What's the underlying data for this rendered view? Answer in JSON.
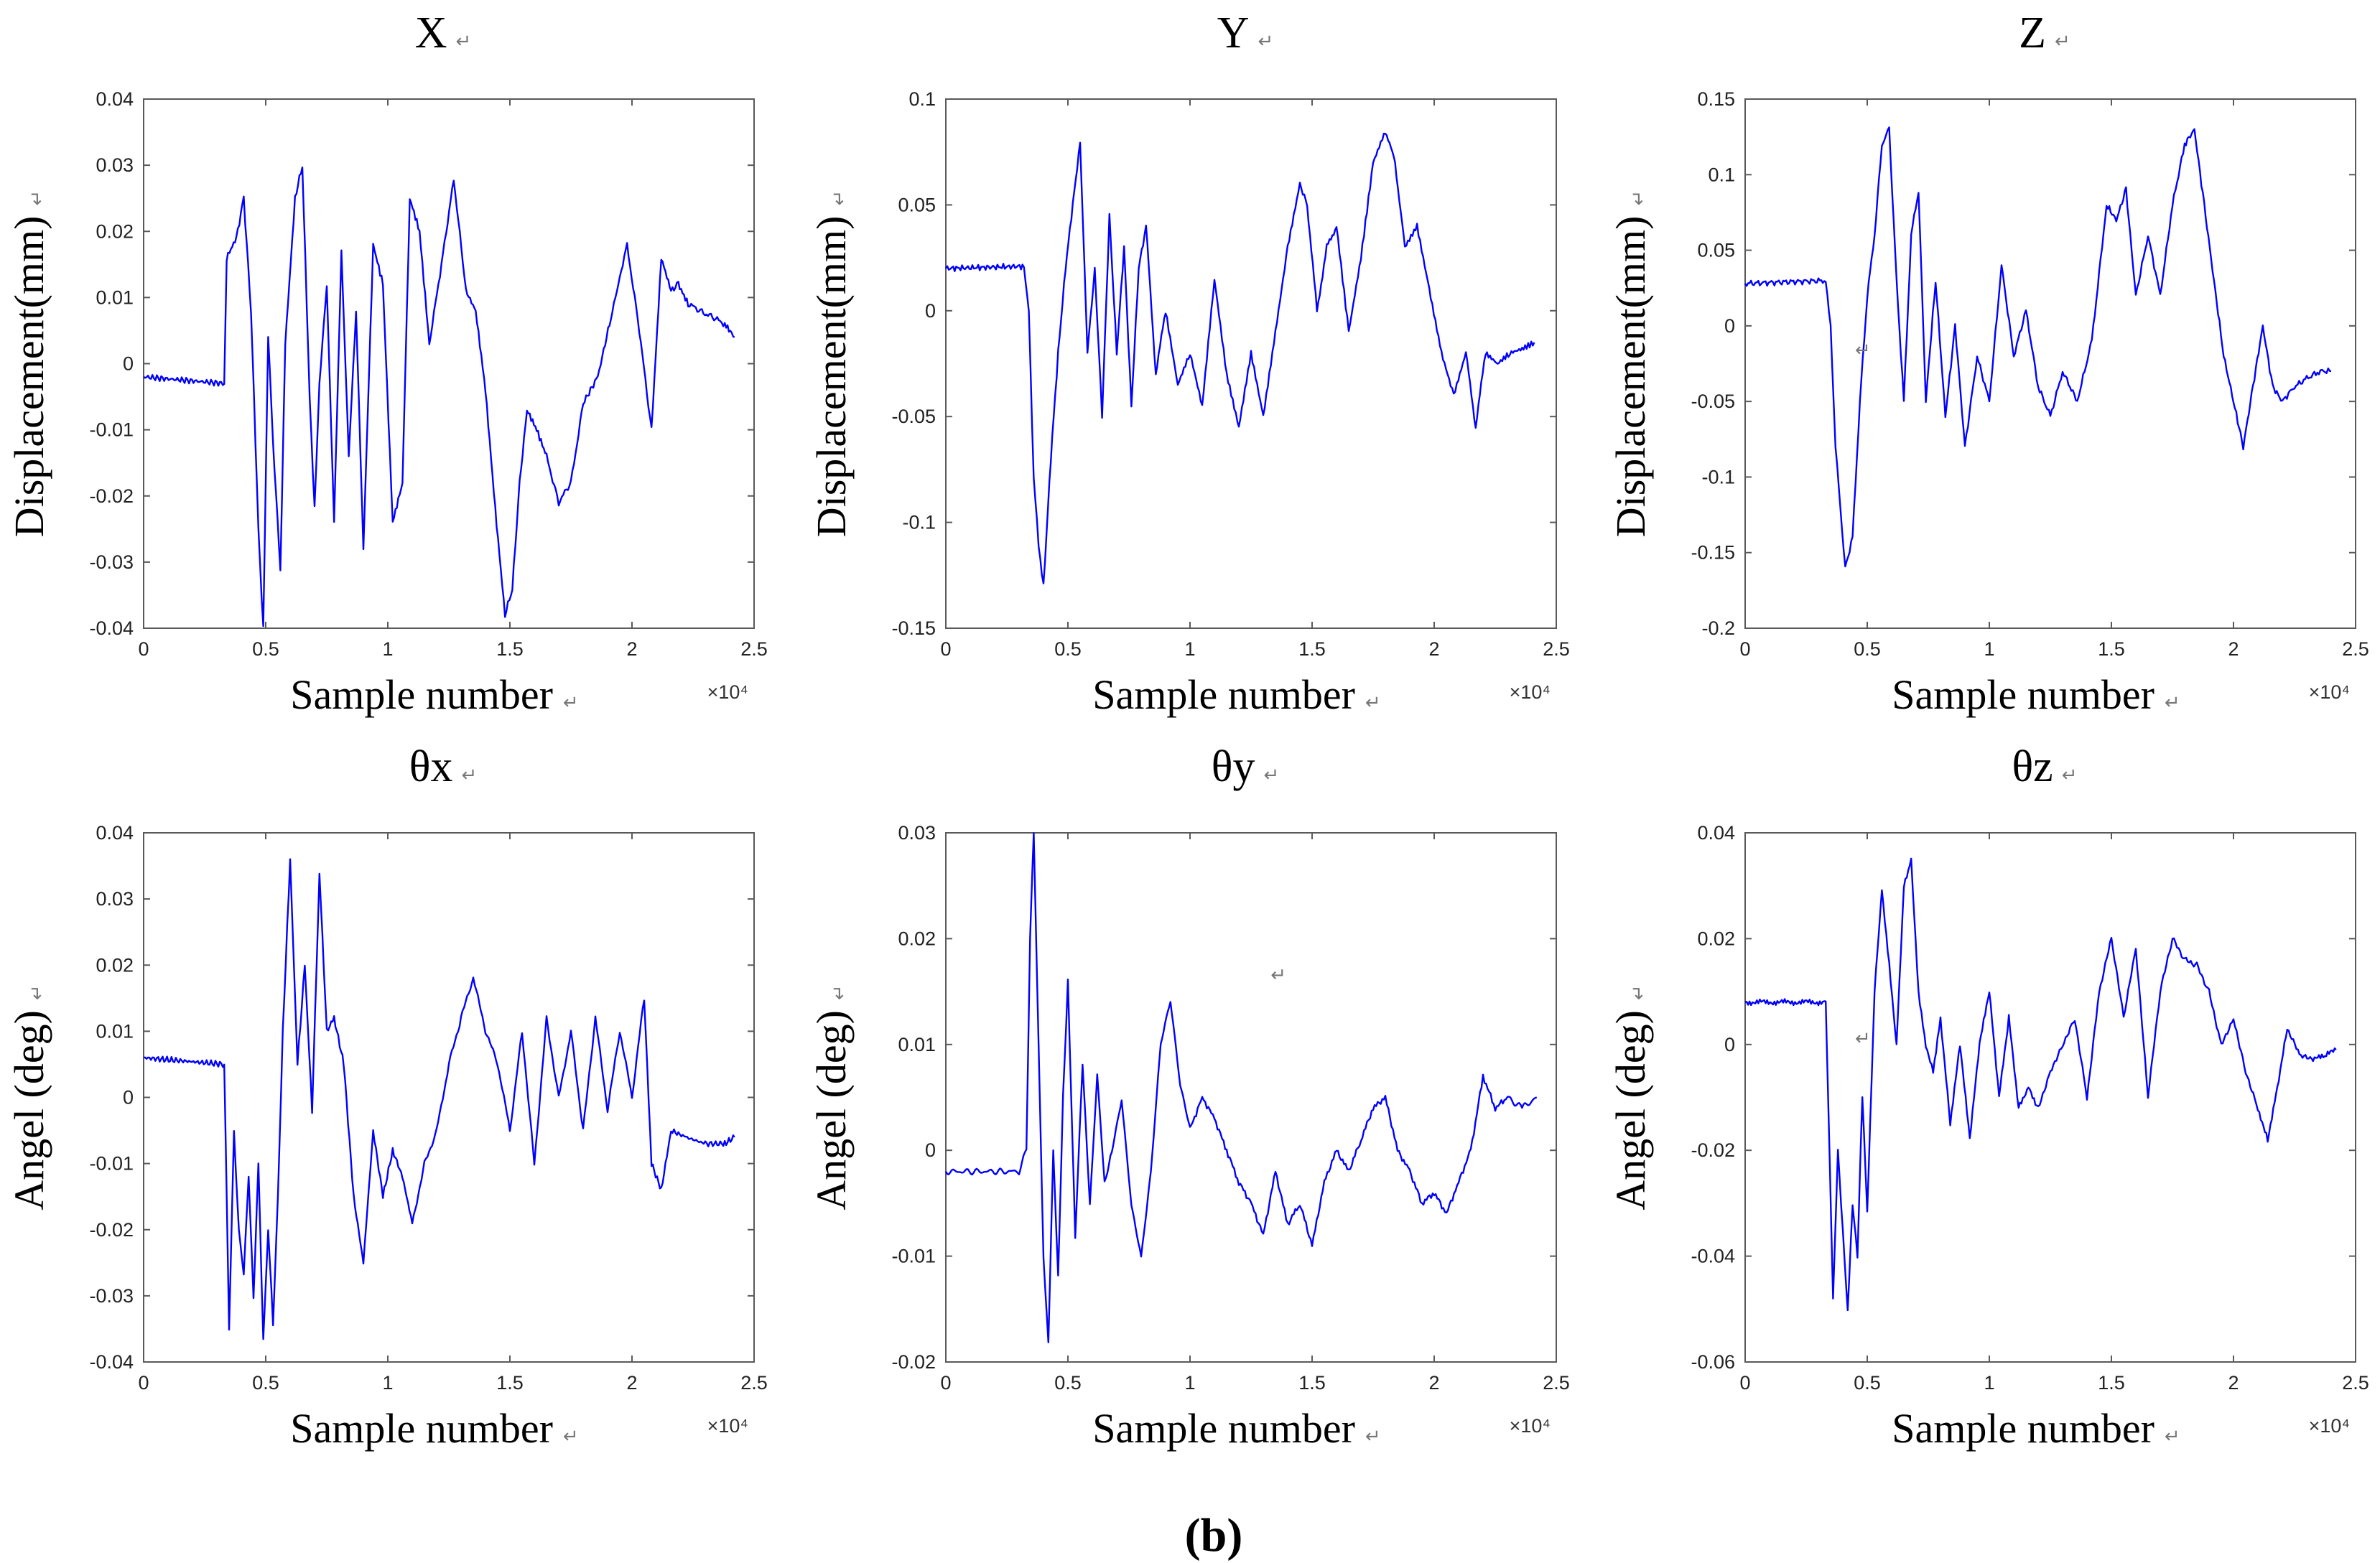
{
  "figure_caption": "(b)",
  "return_mark": "↵",
  "chart_data": [
    {
      "type": "line",
      "title": "X",
      "xlabel": "Sample number",
      "ylabel": "Displacement(mm)",
      "x_multiplier": "×10⁴",
      "xlim": [
        0,
        2.5
      ],
      "xticks": [
        "0",
        "0.5",
        "1",
        "1.5",
        "2",
        "2.5"
      ],
      "ylim": [
        -0.04,
        0.04
      ],
      "yticks": [
        "-0.04",
        "-0.03",
        "-0.02",
        "-0.01",
        "0",
        "0.01",
        "0.02",
        "0.03",
        "0.04"
      ],
      "series": [
        {
          "name": "X",
          "color": "#0000ff",
          "x": [
            0,
            0.33,
            0.34,
            0.38,
            0.41,
            0.44,
            0.47,
            0.49,
            0.51,
            0.53,
            0.56,
            0.58,
            0.62,
            0.65,
            0.68,
            0.7,
            0.72,
            0.75,
            0.78,
            0.81,
            0.84,
            0.87,
            0.9,
            0.94,
            0.98,
            1.02,
            1.06,
            1.09,
            1.13,
            1.17,
            1.22,
            1.27,
            1.32,
            1.36,
            1.4,
            1.44,
            1.48,
            1.51,
            1.54,
            1.57,
            1.61,
            1.65,
            1.7,
            1.75,
            1.8,
            1.86,
            1.92,
            1.98,
            2.03,
            2.08,
            2.12,
            2.16,
            2.19,
            2.23,
            2.28,
            2.33,
            2.38,
            2.42
          ],
          "y": [
            -0.002,
            -0.003,
            0.016,
            0.019,
            0.025,
            0.008,
            -0.025,
            -0.04,
            0.004,
            -0.012,
            -0.031,
            0.003,
            0.025,
            0.03,
            -0.005,
            -0.022,
            -0.003,
            0.012,
            -0.024,
            0.017,
            -0.014,
            0.008,
            -0.028,
            0.018,
            0.012,
            -0.024,
            -0.018,
            0.025,
            0.02,
            0.003,
            0.015,
            0.028,
            0.011,
            0.008,
            -0.004,
            -0.022,
            -0.038,
            -0.034,
            -0.018,
            -0.007,
            -0.01,
            -0.014,
            -0.021,
            -0.018,
            -0.006,
            -0.002,
            0.008,
            0.018,
            0.005,
            -0.01,
            0.016,
            0.011,
            0.012,
            0.009,
            0.008,
            0.007,
            0.006,
            0.004
          ]
        }
      ]
    },
    {
      "type": "line",
      "title": "Y",
      "xlabel": "Sample number",
      "ylabel": "Displacement(mm)",
      "x_multiplier": "×10⁴",
      "xlim": [
        0,
        2.5
      ],
      "xticks": [
        "0",
        "0.5",
        "1",
        "1.5",
        "2",
        "2.5"
      ],
      "ylim": [
        -0.15,
        0.1
      ],
      "yticks": [
        "-0.15",
        "-0.1",
        "-0.05",
        "0",
        "0.05",
        "0.1"
      ],
      "series": [
        {
          "name": "Y",
          "color": "#0000ff",
          "x": [
            0,
            0.32,
            0.34,
            0.36,
            0.38,
            0.4,
            0.43,
            0.46,
            0.49,
            0.52,
            0.55,
            0.58,
            0.61,
            0.64,
            0.67,
            0.7,
            0.73,
            0.76,
            0.79,
            0.82,
            0.86,
            0.9,
            0.95,
            1.0,
            1.05,
            1.1,
            1.15,
            1.2,
            1.25,
            1.3,
            1.35,
            1.4,
            1.45,
            1.48,
            1.52,
            1.56,
            1.6,
            1.65,
            1.7,
            1.75,
            1.8,
            1.84,
            1.88,
            1.93,
            1.98,
            2.03,
            2.08,
            2.13,
            2.17,
            2.21,
            2.26,
            2.31,
            2.36,
            2.41
          ],
          "y": [
            0.02,
            0.021,
            0.0,
            -0.08,
            -0.11,
            -0.13,
            -0.07,
            -0.02,
            0.02,
            0.05,
            0.08,
            -0.02,
            0.02,
            -0.05,
            0.045,
            -0.02,
            0.03,
            -0.045,
            0.02,
            0.04,
            -0.03,
            0.0,
            -0.035,
            -0.02,
            -0.045,
            0.015,
            -0.03,
            -0.055,
            -0.02,
            -0.05,
            -0.01,
            0.03,
            0.06,
            0.05,
            0.0,
            0.03,
            0.04,
            -0.01,
            0.025,
            0.07,
            0.085,
            0.07,
            0.03,
            0.04,
            0.01,
            -0.02,
            -0.04,
            -0.02,
            -0.055,
            -0.02,
            -0.025,
            -0.02,
            -0.018,
            -0.015
          ]
        }
      ]
    },
    {
      "type": "line",
      "title": "Z",
      "xlabel": "Sample number",
      "ylabel": "Displacement(mm)",
      "x_multiplier": "×10⁴",
      "xlim": [
        0,
        2.5
      ],
      "xticks": [
        "0",
        "0.5",
        "1",
        "1.5",
        "2",
        "2.5"
      ],
      "ylim": [
        -0.2,
        0.15
      ],
      "yticks": [
        "-0.2",
        "-0.15",
        "-0.1",
        "-0.05",
        "0",
        "0.05",
        "0.1",
        "0.15"
      ],
      "series": [
        {
          "name": "Z",
          "color": "#0000ff",
          "x": [
            0,
            0.33,
            0.35,
            0.37,
            0.39,
            0.41,
            0.44,
            0.47,
            0.5,
            0.53,
            0.56,
            0.59,
            0.62,
            0.65,
            0.68,
            0.71,
            0.74,
            0.78,
            0.82,
            0.86,
            0.9,
            0.95,
            1.0,
            1.05,
            1.1,
            1.15,
            1.2,
            1.25,
            1.3,
            1.36,
            1.42,
            1.48,
            1.52,
            1.56,
            1.6,
            1.65,
            1.7,
            1.75,
            1.8,
            1.84,
            1.88,
            1.92,
            1.96,
            2.0,
            2.04,
            2.08,
            2.12,
            2.16,
            2.2,
            2.25,
            2.3,
            2.35,
            2.4
          ],
          "y": [
            0.028,
            0.03,
            0.0,
            -0.08,
            -0.12,
            -0.16,
            -0.14,
            -0.05,
            0.02,
            0.06,
            0.12,
            0.13,
            0.03,
            -0.05,
            0.06,
            0.09,
            -0.05,
            0.03,
            -0.06,
            0.0,
            -0.08,
            -0.02,
            -0.05,
            0.04,
            -0.02,
            0.01,
            -0.04,
            -0.06,
            -0.03,
            -0.05,
            -0.01,
            0.08,
            0.07,
            0.09,
            0.02,
            0.06,
            0.02,
            0.08,
            0.12,
            0.13,
            0.08,
            0.03,
            -0.02,
            -0.05,
            -0.08,
            -0.04,
            0.0,
            -0.04,
            -0.05,
            -0.04,
            -0.035,
            -0.03,
            -0.03
          ]
        }
      ]
    },
    {
      "type": "line",
      "title": "θx",
      "xlabel": "Sample number",
      "ylabel": "Angel (deg)",
      "x_multiplier": "×10⁴",
      "xlim": [
        0,
        2.5
      ],
      "xticks": [
        "0",
        "0.5",
        "1",
        "1.5",
        "2",
        "2.5"
      ],
      "ylim": [
        -0.04,
        0.04
      ],
      "yticks": [
        "-0.04",
        "-0.03",
        "-0.02",
        "-0.01",
        "0",
        "0.01",
        "0.02",
        "0.03",
        "0.04"
      ],
      "series": [
        {
          "name": "θx",
          "color": "#0000ff",
          "x": [
            0,
            0.33,
            0.35,
            0.37,
            0.39,
            0.41,
            0.43,
            0.45,
            0.47,
            0.49,
            0.51,
            0.53,
            0.55,
            0.57,
            0.6,
            0.63,
            0.66,
            0.69,
            0.72,
            0.75,
            0.78,
            0.82,
            0.86,
            0.9,
            0.94,
            0.98,
            1.02,
            1.06,
            1.1,
            1.15,
            1.2,
            1.25,
            1.3,
            1.35,
            1.4,
            1.45,
            1.5,
            1.55,
            1.6,
            1.65,
            1.7,
            1.75,
            1.8,
            1.85,
            1.9,
            1.95,
            2.0,
            2.05,
            2.08,
            2.12,
            2.16,
            2.22,
            2.3,
            2.38,
            2.42
          ],
          "y": [
            0.006,
            0.005,
            -0.035,
            -0.005,
            -0.02,
            -0.027,
            -0.012,
            -0.03,
            -0.01,
            -0.037,
            -0.02,
            -0.034,
            -0.015,
            0.01,
            0.036,
            0.005,
            0.02,
            -0.002,
            0.034,
            0.01,
            0.012,
            0.005,
            -0.015,
            -0.025,
            -0.005,
            -0.015,
            -0.008,
            -0.012,
            -0.019,
            -0.01,
            -0.005,
            0.005,
            0.012,
            0.018,
            0.01,
            0.005,
            -0.005,
            0.01,
            -0.01,
            0.012,
            0.0,
            0.01,
            -0.005,
            0.012,
            -0.002,
            0.01,
            0.0,
            0.015,
            -0.01,
            -0.014,
            -0.005,
            -0.006,
            -0.007,
            -0.007,
            -0.006
          ]
        }
      ]
    },
    {
      "type": "line",
      "title": "θy",
      "xlabel": "Sample number",
      "ylabel": "Angel (deg)",
      "x_multiplier": "×10⁴",
      "xlim": [
        0,
        2.5
      ],
      "xticks": [
        "0",
        "0.5",
        "1",
        "1.5",
        "2",
        "2.5"
      ],
      "ylim": [
        -0.02,
        0.03
      ],
      "yticks": [
        "-0.02",
        "-0.01",
        "0",
        "0.01",
        "0.02",
        "0.03"
      ],
      "series": [
        {
          "name": "θy",
          "color": "#0000ff",
          "x": [
            0,
            0.3,
            0.33,
            0.345,
            0.36,
            0.38,
            0.4,
            0.42,
            0.44,
            0.46,
            0.48,
            0.5,
            0.53,
            0.56,
            0.59,
            0.62,
            0.65,
            0.68,
            0.72,
            0.76,
            0.8,
            0.84,
            0.88,
            0.92,
            0.96,
            1.0,
            1.05,
            1.1,
            1.15,
            1.2,
            1.25,
            1.3,
            1.35,
            1.4,
            1.45,
            1.5,
            1.55,
            1.6,
            1.65,
            1.7,
            1.75,
            1.8,
            1.85,
            1.9,
            1.95,
            2.0,
            2.05,
            2.1,
            2.15,
            2.2,
            2.25,
            2.3,
            2.36,
            2.42
          ],
          "y": [
            -0.002,
            -0.002,
            0.0,
            0.02,
            0.03,
            0.01,
            -0.01,
            -0.018,
            0.0,
            -0.012,
            0.005,
            0.016,
            -0.008,
            0.008,
            -0.005,
            0.007,
            -0.003,
            0.0,
            0.005,
            -0.005,
            -0.01,
            -0.002,
            0.01,
            0.014,
            0.006,
            0.002,
            0.005,
            0.003,
            0.0,
            -0.003,
            -0.005,
            -0.008,
            -0.002,
            -0.007,
            -0.005,
            -0.009,
            -0.003,
            0.0,
            -0.002,
            0.001,
            0.004,
            0.005,
            0.0,
            -0.002,
            -0.005,
            -0.004,
            -0.006,
            -0.003,
            0.0,
            0.007,
            0.004,
            0.005,
            0.004,
            0.005
          ]
        }
      ]
    },
    {
      "type": "line",
      "title": "θz",
      "xlabel": "Sample number",
      "ylabel": "Angel (deg)",
      "x_multiplier": "×10⁴",
      "xlim": [
        0,
        2.5
      ],
      "xticks": [
        "0",
        "0.5",
        "1",
        "1.5",
        "2",
        "2.5"
      ],
      "ylim": [
        -0.06,
        0.04
      ],
      "yticks": [
        "-0.06",
        "-0.04",
        "-0.02",
        "0",
        "0.02",
        "0.04"
      ],
      "series": [
        {
          "name": "θz",
          "color": "#0000ff",
          "x": [
            0,
            0.33,
            0.34,
            0.36,
            0.38,
            0.4,
            0.42,
            0.44,
            0.46,
            0.48,
            0.5,
            0.53,
            0.56,
            0.59,
            0.62,
            0.65,
            0.68,
            0.71,
            0.74,
            0.77,
            0.8,
            0.84,
            0.88,
            0.92,
            0.96,
            1.0,
            1.04,
            1.08,
            1.12,
            1.16,
            1.2,
            1.25,
            1.3,
            1.35,
            1.4,
            1.45,
            1.5,
            1.55,
            1.6,
            1.65,
            1.7,
            1.75,
            1.8,
            1.85,
            1.9,
            1.95,
            2.0,
            2.05,
            2.1,
            2.14,
            2.18,
            2.22,
            2.27,
            2.32,
            2.38,
            2.42
          ],
          "y": [
            0.008,
            0.008,
            -0.01,
            -0.048,
            -0.02,
            -0.035,
            -0.05,
            -0.03,
            -0.04,
            -0.01,
            -0.032,
            0.01,
            0.029,
            0.015,
            0.0,
            0.03,
            0.035,
            0.01,
            0.0,
            -0.005,
            0.005,
            -0.015,
            0.0,
            -0.018,
            0.0,
            0.01,
            -0.01,
            0.005,
            -0.012,
            -0.008,
            -0.012,
            -0.005,
            0.0,
            0.005,
            -0.01,
            0.01,
            0.02,
            0.005,
            0.018,
            -0.01,
            0.01,
            0.02,
            0.016,
            0.015,
            0.01,
            0.0,
            0.005,
            -0.005,
            -0.012,
            -0.018,
            -0.008,
            0.003,
            -0.002,
            -0.003,
            -0.002,
            -0.001
          ]
        }
      ]
    }
  ],
  "stray_marks": [
    {
      "chart": 2,
      "x": 0.45,
      "y": -0.02
    },
    {
      "chart": 4,
      "x": 1.33,
      "y": 0.016
    },
    {
      "chart": 5,
      "x": 0.45,
      "y": 0.0
    }
  ]
}
